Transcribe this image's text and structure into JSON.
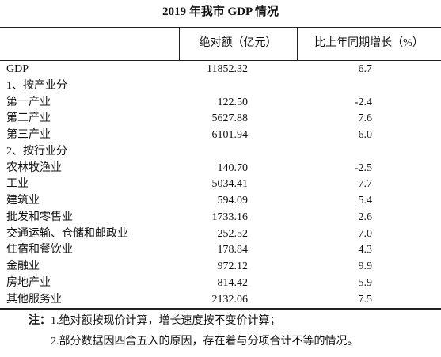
{
  "header": {
    "title": "2019 年我市 GDP 情况"
  },
  "table": {
    "columns": [
      "绝对额（亿元）",
      "比上年同期增长（%）"
    ],
    "rows": [
      {
        "label": "GDP",
        "value": "11852.32",
        "growth": "6.7"
      },
      {
        "label": "1、按产业分"
      },
      {
        "label": "第一产业",
        "value": "122.50",
        "growth": "-2.4"
      },
      {
        "label": "第二产业",
        "value": "5627.88",
        "growth": "7.6"
      },
      {
        "label": "第三产业",
        "value": "6101.94",
        "growth": "6.0"
      },
      {
        "label": "2、按行业分"
      },
      {
        "label": "农林牧渔业",
        "value": "140.70",
        "growth": "-2.5"
      },
      {
        "label": "工业",
        "value": "5034.41",
        "growth": "7.7"
      },
      {
        "label": "建筑业",
        "value": "594.09",
        "growth": "5.4"
      },
      {
        "label": "批发和零售业",
        "value": "1733.16",
        "growth": "2.6"
      },
      {
        "label": "交通运输、仓储和邮政业",
        "value": "252.52",
        "growth": "7.0"
      },
      {
        "label": "住宿和餐饮业",
        "value": "178.84",
        "growth": "4.3"
      },
      {
        "label": "金融业",
        "value": "972.12",
        "growth": "9.9"
      },
      {
        "label": "房地产业",
        "value": "814.42",
        "growth": "5.9"
      },
      {
        "label": "其他服务业",
        "value": "2132.06",
        "growth": "7.5"
      }
    ]
  },
  "notes": {
    "label": "注：",
    "items": [
      "1.绝对额按现价计算，增长速度按不变价计算；",
      "2.部分数据因四舍五入的原因，存在着与分项合计不等的情况。"
    ]
  }
}
